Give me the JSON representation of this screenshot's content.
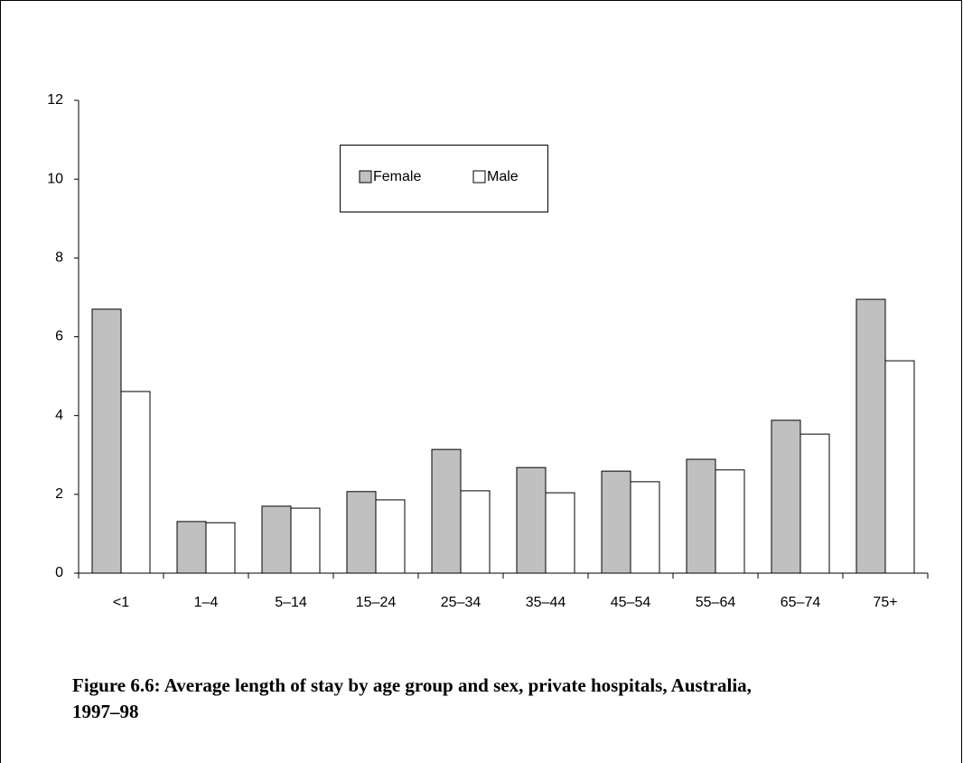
{
  "chart_data": {
    "type": "bar",
    "title": "Figure 6.6: Average length of stay by age group and sex, private hospitals, Australia, 1997–98",
    "categories": [
      "<1",
      "1–4",
      "5–14",
      "15–24",
      "25–34",
      "35–44",
      "45–54",
      "55–64",
      "65–74",
      "75+"
    ],
    "series": [
      {
        "name": "Female",
        "color": "#c0c0c0",
        "values": [
          6.7,
          1.31,
          1.7,
          2.07,
          3.14,
          2.68,
          2.59,
          2.89,
          3.88,
          6.95
        ]
      },
      {
        "name": "Male",
        "color": "#ffffff",
        "values": [
          4.61,
          1.28,
          1.65,
          1.86,
          2.09,
          2.04,
          2.32,
          2.62,
          3.53,
          5.39
        ]
      }
    ],
    "ylim": [
      0,
      12
    ],
    "yticks": [
      0,
      2,
      4,
      6,
      8,
      10,
      12
    ],
    "grid": false
  }
}
